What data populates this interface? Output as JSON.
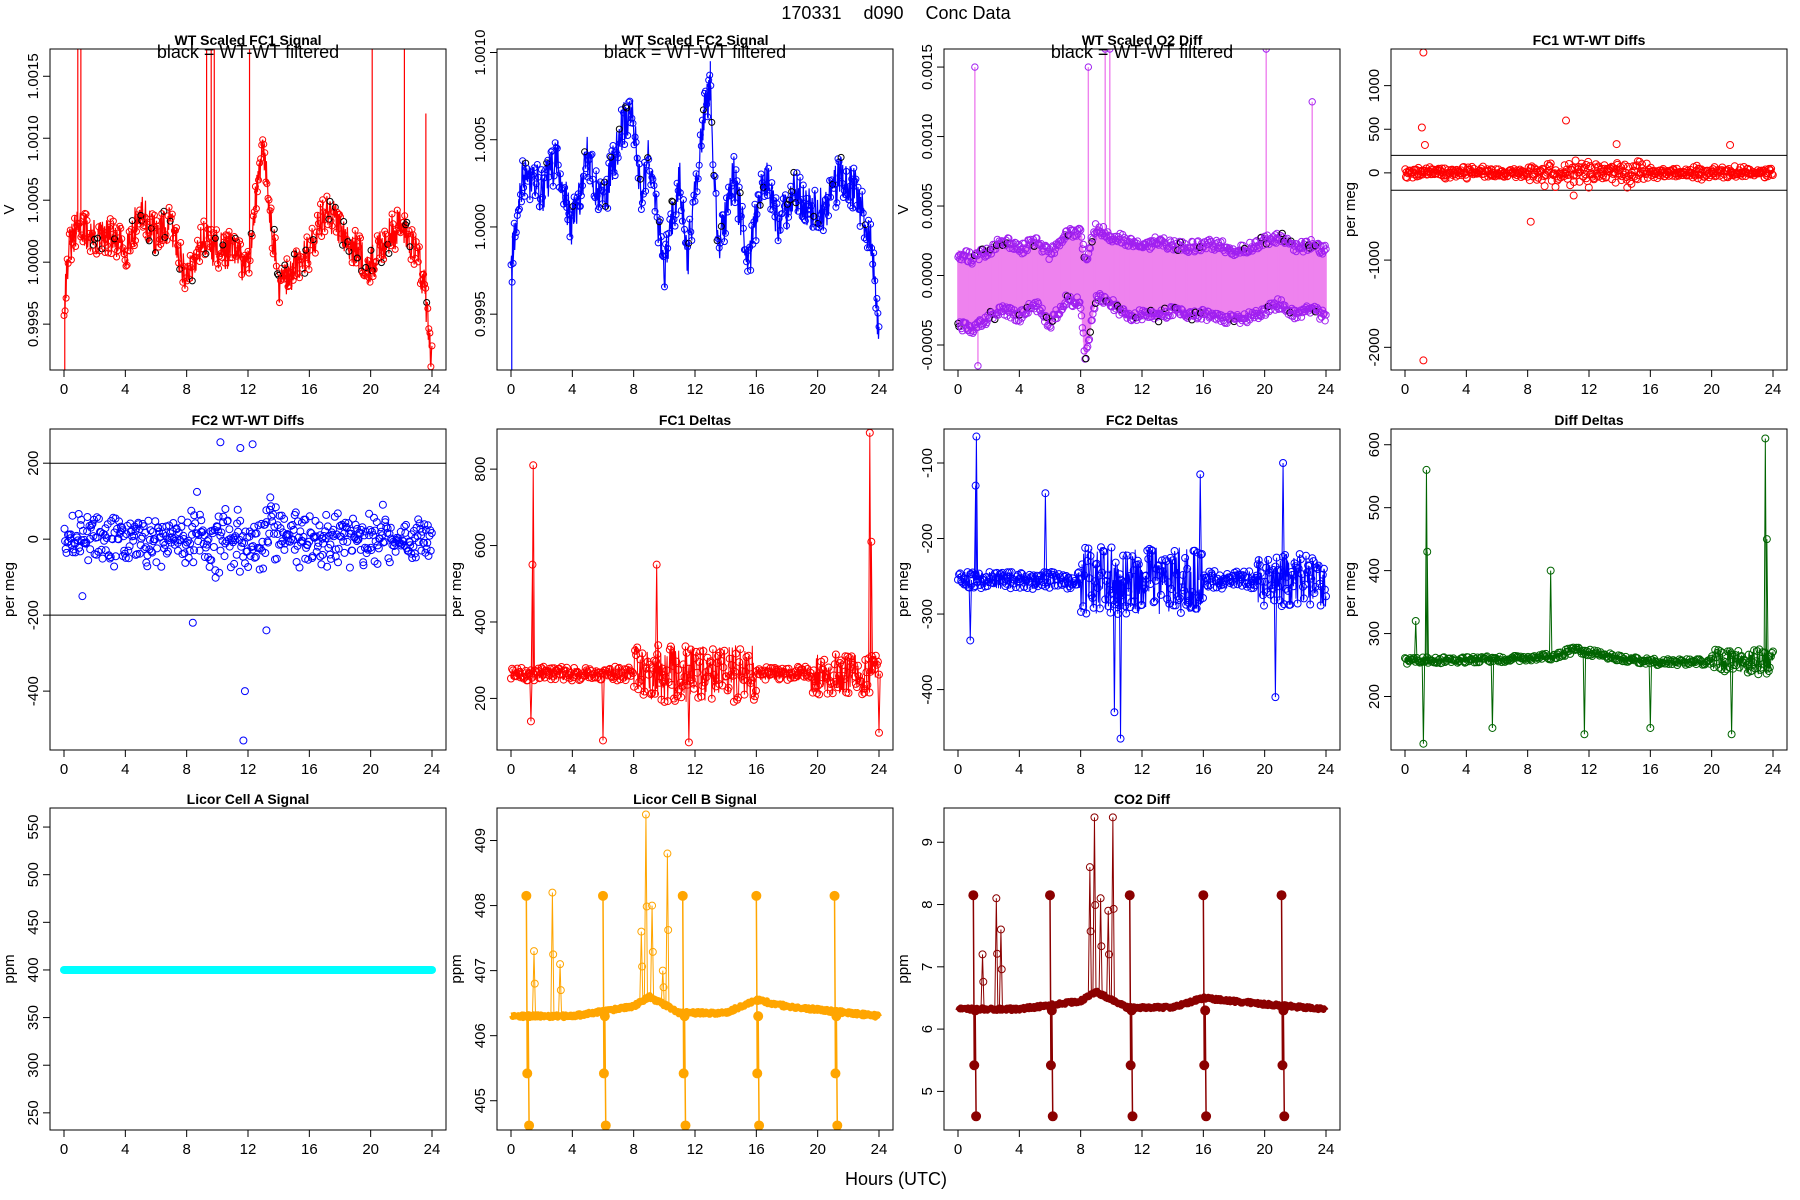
{
  "figure": {
    "title_parts": [
      "170331",
      "d090",
      "Conc Data"
    ],
    "xlabel": "Hours (UTC)"
  },
  "chart_data": [
    {
      "id": "p1",
      "type": "line",
      "title": "WT Scaled FC1 Signal",
      "subtitle": "black = WT-WT filtered",
      "ylabel": "V",
      "color": "#ff0000",
      "xlim": [
        0,
        24
      ],
      "ylim": [
        0.99913,
        1.00172
      ],
      "xticks": [
        0,
        4,
        8,
        12,
        16,
        20,
        24
      ],
      "yticks": [
        0.9995,
        1.0,
        1.0005,
        1.001,
        1.0015
      ],
      "ytick_labels": [
        "0.9995",
        "1.0000",
        "1.0005",
        "1.0010",
        "1.0015"
      ],
      "baseline": [
        [
          0,
          0.99965
        ],
        [
          0.3,
          1.0001
        ],
        [
          1,
          1.0003
        ],
        [
          2,
          1.00018
        ],
        [
          3,
          1.0002
        ],
        [
          4,
          1.0001
        ],
        [
          5,
          1.0004
        ],
        [
          6,
          1.0002
        ],
        [
          7,
          1.0003
        ],
        [
          8,
          0.99985
        ],
        [
          9,
          1.0002
        ],
        [
          10,
          1.0001
        ],
        [
          11,
          1.0001
        ],
        [
          12,
          0.99995
        ],
        [
          12.6,
          1.0006
        ],
        [
          13,
          1.0009
        ],
        [
          14,
          0.9998
        ],
        [
          15,
          0.99995
        ],
        [
          16,
          1.0001
        ],
        [
          17,
          1.0004
        ],
        [
          18,
          1.0003
        ],
        [
          19,
          1.0001
        ],
        [
          20,
          0.99995
        ],
        [
          21,
          1.0002
        ],
        [
          22,
          1.0003
        ],
        [
          23,
          1.0001
        ],
        [
          23.5,
          0.9998
        ],
        [
          24,
          0.9992
        ]
      ],
      "noise": 0.00016,
      "marker_every": 2,
      "black_fraction": 0.12,
      "spikes": [
        [
          0.9,
          1.00172
        ],
        [
          1.1,
          1.00172
        ],
        [
          9.3,
          1.00172
        ],
        [
          9.6,
          1.00172
        ],
        [
          9.8,
          1.00172
        ],
        [
          12.1,
          1.00172
        ],
        [
          20.1,
          1.00172
        ],
        [
          22.2,
          1.00172
        ],
        [
          23.6,
          1.0012
        ],
        [
          0.05,
          0.99913
        ]
      ]
    },
    {
      "id": "p2",
      "type": "line",
      "title": "WT Scaled FC2 Signal",
      "subtitle": "black = WT-WT filtered",
      "ylabel": "",
      "color": "#0000ff",
      "xlim": [
        0,
        24
      ],
      "ylim": [
        0.99918,
        1.00102
      ],
      "xticks": [
        0,
        4,
        8,
        12,
        16,
        20,
        24
      ],
      "yticks": [
        0.9995,
        1.0,
        1.0005,
        1.001
      ],
      "ytick_labels": [
        "0.9995",
        "1.0000",
        "1.0005",
        "1.0010"
      ],
      "baseline": [
        [
          0,
          0.99975
        ],
        [
          0.5,
          1.0002
        ],
        [
          1,
          1.0003
        ],
        [
          2,
          1.0002
        ],
        [
          3,
          1.0004
        ],
        [
          4,
          1.0
        ],
        [
          5,
          1.0004
        ],
        [
          6,
          1.0001
        ],
        [
          7,
          1.0005
        ],
        [
          7.8,
          1.0007
        ],
        [
          8.5,
          1.0002
        ],
        [
          9,
          1.0004
        ],
        [
          10,
          0.99975
        ],
        [
          11,
          1.0003
        ],
        [
          11.5,
          0.9998
        ],
        [
          12.5,
          1.0006
        ],
        [
          13,
          1.0008
        ],
        [
          13.5,
          0.99985
        ],
        [
          14.5,
          1.0003
        ],
        [
          15.5,
          0.9998
        ],
        [
          16.5,
          1.0003
        ],
        [
          17.5,
          1.0
        ],
        [
          18.5,
          1.0002
        ],
        [
          19.5,
          1.0001
        ],
        [
          20.5,
          1.0001
        ],
        [
          21.5,
          1.0003
        ],
        [
          22.5,
          1.0002
        ],
        [
          23.5,
          0.9999
        ],
        [
          24,
          0.9994
        ]
      ],
      "noise": 0.00013,
      "marker_every": 2,
      "black_fraction": 0.1,
      "spikes": [
        [
          0.05,
          0.99918
        ],
        [
          13,
          1.00095
        ]
      ]
    },
    {
      "id": "p3",
      "type": "bands",
      "title": "WT Scaled O2 Diff",
      "subtitle": "black = WT-WT filtered",
      "ylabel": "V",
      "color": "#ee82ee",
      "marker_color": "#a020f0",
      "xlim": [
        0,
        24
      ],
      "ylim": [
        -0.00068,
        0.00163
      ],
      "xticks": [
        0,
        4,
        8,
        12,
        16,
        20,
        24
      ],
      "yticks": [
        -0.0005,
        0.0,
        0.0005,
        0.001,
        0.0015
      ],
      "ytick_labels": [
        "-0.0005",
        "0.0000",
        "0.0005",
        "0.0010",
        "0.0015"
      ],
      "upper": [
        [
          0,
          0.00016
        ],
        [
          1,
          0.00012
        ],
        [
          2,
          0.00018
        ],
        [
          3,
          0.00025
        ],
        [
          4,
          0.00018
        ],
        [
          5,
          0.00025
        ],
        [
          6,
          0.00015
        ],
        [
          7,
          0.0003
        ],
        [
          8,
          0.0003
        ],
        [
          8.3,
          0.0001
        ],
        [
          9,
          0.00035
        ],
        [
          10,
          0.00028
        ],
        [
          11,
          0.00025
        ],
        [
          12,
          0.0002
        ],
        [
          13,
          0.00025
        ],
        [
          14,
          0.00022
        ],
        [
          15,
          0.0002
        ],
        [
          16,
          0.00022
        ],
        [
          17,
          0.00022
        ],
        [
          18,
          0.00018
        ],
        [
          19,
          0.0002
        ],
        [
          20,
          0.00025
        ],
        [
          21,
          0.00028
        ],
        [
          22,
          0.0002
        ],
        [
          23,
          0.00022
        ],
        [
          24,
          0.00018
        ]
      ],
      "lower": [
        [
          0,
          -0.00035
        ],
        [
          1,
          -0.0004
        ],
        [
          2,
          -0.0003
        ],
        [
          3,
          -0.00025
        ],
        [
          4,
          -0.0003
        ],
        [
          5,
          -0.0002
        ],
        [
          6,
          -0.00035
        ],
        [
          7,
          -0.00018
        ],
        [
          8,
          -0.0002
        ],
        [
          8.3,
          -0.0006
        ],
        [
          9,
          -0.00015
        ],
        [
          10,
          -0.0002
        ],
        [
          11,
          -0.0003
        ],
        [
          12,
          -0.00028
        ],
        [
          13,
          -0.0003
        ],
        [
          14,
          -0.00025
        ],
        [
          15,
          -0.0003
        ],
        [
          16,
          -0.00028
        ],
        [
          17,
          -0.0003
        ],
        [
          18,
          -0.00032
        ],
        [
          19,
          -0.0003
        ],
        [
          20,
          -0.00025
        ],
        [
          21,
          -0.0002
        ],
        [
          22,
          -0.00028
        ],
        [
          23,
          -0.00025
        ],
        [
          24,
          -0.0003
        ]
      ],
      "spikes": [
        [
          1.1,
          0.0015
        ],
        [
          8.5,
          0.0015
        ],
        [
          9.6,
          0.00163
        ],
        [
          9.9,
          0.00163
        ],
        [
          20.1,
          0.00163
        ],
        [
          23.1,
          0.00125
        ],
        [
          1.3,
          -0.00065
        ]
      ]
    },
    {
      "id": "p4",
      "type": "scatter",
      "title": "FC1 WT-WT Diffs",
      "ylabel": "per meg",
      "color": "#ff0000",
      "xlim": [
        0,
        24
      ],
      "ylim": [
        -2260,
        1420
      ],
      "xticks": [
        0,
        4,
        8,
        12,
        16,
        20,
        24
      ],
      "yticks": [
        -2000,
        -1000,
        0,
        500,
        1000
      ],
      "ytick_labels": [
        "-2000",
        "-1000",
        "0",
        "500",
        "1000"
      ],
      "hlines": [
        200,
        -200
      ],
      "n": 520,
      "spread": 60,
      "extra_spread": 140,
      "extra_range": [
        8,
        16
      ],
      "outliers": [
        [
          1.2,
          1380
        ],
        [
          1.1,
          520
        ],
        [
          1.3,
          320
        ],
        [
          1.2,
          -2150
        ],
        [
          10.5,
          600
        ],
        [
          8.2,
          -560
        ],
        [
          13.8,
          330
        ],
        [
          21.2,
          320
        ],
        [
          11.0,
          -260
        ]
      ]
    },
    {
      "id": "p5",
      "type": "scatter",
      "title": "FC2 WT-WT Diffs",
      "ylabel": "per meg",
      "color": "#0000ff",
      "xlim": [
        0,
        24
      ],
      "ylim": [
        -555,
        290
      ],
      "xticks": [
        0,
        4,
        8,
        12,
        16,
        20,
        24
      ],
      "yticks": [
        -400,
        -200,
        0,
        200
      ],
      "ytick_labels": [
        "-400",
        "-200",
        "0",
        "200"
      ],
      "hlines": [
        200,
        -200
      ],
      "n": 520,
      "spread": 65,
      "extra_spread": 95,
      "extra_range": [
        8,
        14
      ],
      "outliers": [
        [
          11.7,
          -530
        ],
        [
          11.8,
          -400
        ],
        [
          10.2,
          255
        ],
        [
          11.5,
          240
        ],
        [
          12.3,
          250
        ],
        [
          13.2,
          -240
        ],
        [
          8.4,
          -220
        ],
        [
          1.2,
          -150
        ]
      ]
    },
    {
      "id": "p6",
      "type": "series",
      "title": "FC1 Deltas",
      "ylabel": "per meg",
      "color": "#ff0000",
      "xlim": [
        0,
        24
      ],
      "ylim": [
        65,
        905
      ],
      "xticks": [
        0,
        4,
        8,
        12,
        16,
        20,
        24
      ],
      "yticks": [
        200,
        400,
        600,
        800
      ],
      "ytick_labels": [
        "200",
        "400",
        "600",
        "800"
      ],
      "baseline": [
        [
          0,
          265
        ],
        [
          24,
          265
        ]
      ],
      "noise": 18,
      "noisy_ranges": [
        [
          8,
          16,
          75
        ],
        [
          19.5,
          24,
          55
        ]
      ],
      "spikes": [
        [
          1.45,
          810
        ],
        [
          1.4,
          550
        ],
        [
          23.4,
          895
        ],
        [
          23.5,
          610
        ],
        [
          1.3,
          140
        ],
        [
          9.5,
          550
        ],
        [
          6,
          90
        ],
        [
          11.6,
          85
        ],
        [
          24,
          110
        ]
      ]
    },
    {
      "id": "p7",
      "type": "series",
      "title": "FC2 Deltas",
      "ylabel": "per meg",
      "color": "#0000ff",
      "xlim": [
        0,
        24
      ],
      "ylim": [
        -480,
        -55
      ],
      "xticks": [
        0,
        4,
        8,
        12,
        16,
        20,
        24
      ],
      "yticks": [
        -400,
        -300,
        -200,
        -100
      ],
      "ytick_labels": [
        "-400",
        "-300",
        "-200",
        "-100"
      ],
      "baseline": [
        [
          0,
          -255
        ],
        [
          24,
          -255
        ]
      ],
      "noise": 12,
      "noisy_ranges": [
        [
          8,
          16,
          45
        ],
        [
          19.5,
          24,
          35
        ]
      ],
      "spikes": [
        [
          1.2,
          -65
        ],
        [
          1.15,
          -130
        ],
        [
          10.6,
          -465
        ],
        [
          10.2,
          -430
        ],
        [
          15.8,
          -115
        ],
        [
          20.7,
          -410
        ],
        [
          21.2,
          -100
        ],
        [
          0.8,
          -335
        ],
        [
          5.7,
          -140
        ]
      ]
    },
    {
      "id": "p8",
      "type": "series",
      "title": "Diff Deltas",
      "ylabel": "per meg",
      "color": "#006400",
      "xlim": [
        0,
        24
      ],
      "ylim": [
        115,
        625
      ],
      "xticks": [
        0,
        4,
        8,
        12,
        16,
        20,
        24
      ],
      "yticks": [
        200,
        300,
        400,
        500,
        600
      ],
      "ytick_labels": [
        "200",
        "300",
        "400",
        "500",
        "600"
      ],
      "baseline": [
        [
          0,
          257
        ],
        [
          8,
          260
        ],
        [
          10,
          265
        ],
        [
          11,
          275
        ],
        [
          13,
          265
        ],
        [
          16,
          255
        ],
        [
          24,
          255
        ]
      ],
      "noise": 5,
      "noisy_ranges": [
        [
          20,
          24,
          20
        ]
      ],
      "spikes": [
        [
          1.4,
          560
        ],
        [
          1.45,
          430
        ],
        [
          1.2,
          125
        ],
        [
          23.5,
          610
        ],
        [
          23.6,
          450
        ],
        [
          9.5,
          400
        ],
        [
          5.7,
          150
        ],
        [
          16,
          150
        ],
        [
          11.7,
          140
        ],
        [
          0.7,
          320
        ],
        [
          21.3,
          140
        ]
      ]
    },
    {
      "id": "p9",
      "type": "flat",
      "title": "Licor Cell A Signal",
      "ylabel": "ppm",
      "color": "#00ffff",
      "xlim": [
        0,
        24
      ],
      "ylim": [
        232,
        570
      ],
      "xticks": [
        0,
        4,
        8,
        12,
        16,
        20,
        24
      ],
      "yticks": [
        250,
        300,
        350,
        400,
        450,
        500,
        550
      ],
      "ytick_labels": [
        "250",
        "300",
        "350",
        "400",
        "450",
        "500",
        "550"
      ],
      "value": 400
    },
    {
      "id": "p10",
      "type": "licor",
      "title": "Licor Cell B Signal",
      "ylabel": "ppm",
      "color": "#ffa500",
      "xlim": [
        0,
        24
      ],
      "ylim": [
        404.55,
        409.5
      ],
      "xticks": [
        0,
        4,
        8,
        12,
        16,
        20,
        24
      ],
      "yticks": [
        405,
        406,
        407,
        408,
        409
      ],
      "ytick_labels": [
        "405",
        "406",
        "407",
        "408",
        "409"
      ],
      "baseline": [
        [
          0,
          406.3
        ],
        [
          4,
          406.3
        ],
        [
          8,
          406.45
        ],
        [
          9,
          406.6
        ],
        [
          11,
          406.35
        ],
        [
          14,
          406.35
        ],
        [
          16,
          406.55
        ],
        [
          18,
          406.45
        ],
        [
          20,
          406.4
        ],
        [
          24,
          406.3
        ]
      ],
      "cal_times": [
        1.0,
        6.0,
        11.2,
        16.0,
        21.1
      ],
      "cal_levels": [
        408.15,
        405.42,
        406.3,
        404.62
      ],
      "bursts": [
        [
          2.7,
          408.2
        ],
        [
          3.2,
          407.1
        ],
        [
          8.5,
          407.6
        ],
        [
          8.8,
          409.4
        ],
        [
          9.2,
          408.0
        ],
        [
          9.9,
          407.0
        ],
        [
          10.2,
          408.8
        ],
        [
          1.5,
          407.3
        ]
      ]
    },
    {
      "id": "p11",
      "type": "licor",
      "title": "CO2 Diff",
      "ylabel": "ppm",
      "color": "#8b0000",
      "xlim": [
        0,
        24
      ],
      "ylim": [
        4.38,
        9.55
      ],
      "xticks": [
        0,
        4,
        8,
        12,
        16,
        20,
        24
      ],
      "yticks": [
        5,
        6,
        7,
        8,
        9
      ],
      "ytick_labels": [
        "5",
        "6",
        "7",
        "8",
        "9"
      ],
      "baseline": [
        [
          0,
          6.32
        ],
        [
          4,
          6.32
        ],
        [
          8,
          6.45
        ],
        [
          9,
          6.6
        ],
        [
          11,
          6.35
        ],
        [
          14,
          6.35
        ],
        [
          16,
          6.5
        ],
        [
          18,
          6.45
        ],
        [
          20,
          6.4
        ],
        [
          24,
          6.32
        ]
      ],
      "cal_times": [
        1.0,
        6.0,
        11.2,
        16.0,
        21.1
      ],
      "cal_levels": [
        8.15,
        5.42,
        6.3,
        4.6
      ],
      "bursts": [
        [
          2.5,
          8.1
        ],
        [
          2.8,
          7.6
        ],
        [
          8.6,
          8.6
        ],
        [
          8.9,
          9.4
        ],
        [
          9.3,
          8.1
        ],
        [
          9.8,
          7.9
        ],
        [
          10.1,
          9.4
        ],
        [
          1.6,
          7.2
        ]
      ]
    }
  ]
}
